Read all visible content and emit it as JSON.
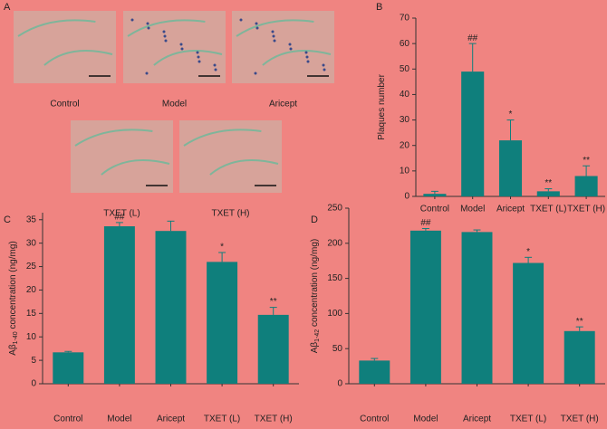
{
  "panel_a": {
    "label": "A",
    "images": [
      {
        "label": "Control"
      },
      {
        "label": "Model"
      },
      {
        "label": "Aricept"
      },
      {
        "label": "TXET (L)"
      },
      {
        "label": "TXET (H)"
      }
    ]
  },
  "chart_data": [
    {
      "type": "bar",
      "panel": "B",
      "ylabel": {
        "main": "Plaques number"
      },
      "categories": [
        "Control",
        "Model",
        "Aricept",
        "TXET (L)",
        "TXET (H)"
      ],
      "values": [
        1,
        49,
        22,
        2,
        8
      ],
      "errors": [
        1,
        11,
        8,
        1,
        4
      ],
      "annotations": [
        null,
        "##",
        "*",
        "**",
        "**"
      ],
      "color": "#0f7f7c",
      "ylim": [
        0,
        70
      ],
      "yticks": [
        0,
        10,
        20,
        30,
        40,
        50,
        60,
        70
      ]
    },
    {
      "type": "bar",
      "panel": "C",
      "ylabel": {
        "main": "Aβ",
        "sub": "1-40",
        "rest": " concentration (ng/mg)"
      },
      "categories": [
        "Control",
        "Model",
        "Aricept",
        "TXET (L)",
        "TXET (H)"
      ],
      "values": [
        6.7,
        33.6,
        32.6,
        26,
        14.7
      ],
      "errors": [
        0.2,
        0.8,
        2.1,
        2,
        1.6
      ],
      "annotations": [
        null,
        "##",
        null,
        "*",
        "**"
      ],
      "color": "#0f7f7c",
      "ylim": [
        0,
        36.5
      ],
      "yticks": [
        0,
        5,
        10,
        15,
        20,
        25,
        30,
        35
      ]
    },
    {
      "type": "bar",
      "panel": "D",
      "ylabel": {
        "main": "Aβ",
        "sub": "1-42",
        "rest": " concentration (ng/mg)"
      },
      "categories": [
        "Control",
        "Model",
        "Aricept",
        "TXET (L)",
        "TXET (H)"
      ],
      "values": [
        33,
        218,
        216,
        172,
        75
      ],
      "errors": [
        3,
        3,
        3,
        8,
        6
      ],
      "annotations": [
        null,
        "##",
        null,
        "*",
        "**"
      ],
      "color": "#0f7f7c",
      "ylim": [
        0,
        250
      ],
      "yticks": [
        0,
        50,
        100,
        150,
        200,
        250
      ]
    }
  ]
}
